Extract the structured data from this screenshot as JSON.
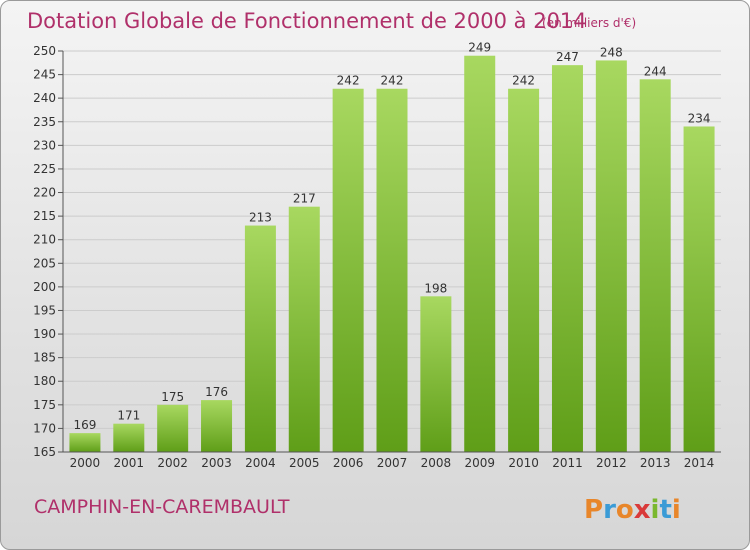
{
  "header": {
    "title": "Dotation Globale de Fonctionnement de 2000 à 2014",
    "unit_note": "(en milliers d'€)"
  },
  "footer": {
    "commune": "CAMPHIN-EN-CAREMBAULT",
    "logo_text": "Proxiti",
    "logo_colors": [
      "#e8862a",
      "#3a9bd6",
      "#e8862a",
      "#d93a3a",
      "#7ab82e",
      "#3a9bd6",
      "#e8862a"
    ]
  },
  "colors": {
    "bar_light": "#a8d860",
    "bar_dark": "#5f9e18",
    "grid": "#cccccc",
    "title": "#b0306a"
  },
  "chart_data": {
    "type": "bar",
    "title": "Dotation Globale de Fonctionnement de 2000 à 2014",
    "subtitle": "(en milliers d'€)",
    "xlabel": "",
    "ylabel": "",
    "categories": [
      "2000",
      "2001",
      "2002",
      "2003",
      "2004",
      "2005",
      "2006",
      "2007",
      "2008",
      "2009",
      "2010",
      "2011",
      "2012",
      "2013",
      "2014"
    ],
    "values": [
      169,
      171,
      175,
      176,
      213,
      217,
      242,
      242,
      198,
      249,
      242,
      247,
      248,
      244,
      234
    ],
    "ylim": [
      165,
      250
    ],
    "yticks": [
      165,
      170,
      175,
      180,
      185,
      190,
      195,
      200,
      205,
      210,
      215,
      220,
      225,
      230,
      235,
      240,
      245,
      250
    ],
    "grid": true,
    "legend": "none"
  }
}
